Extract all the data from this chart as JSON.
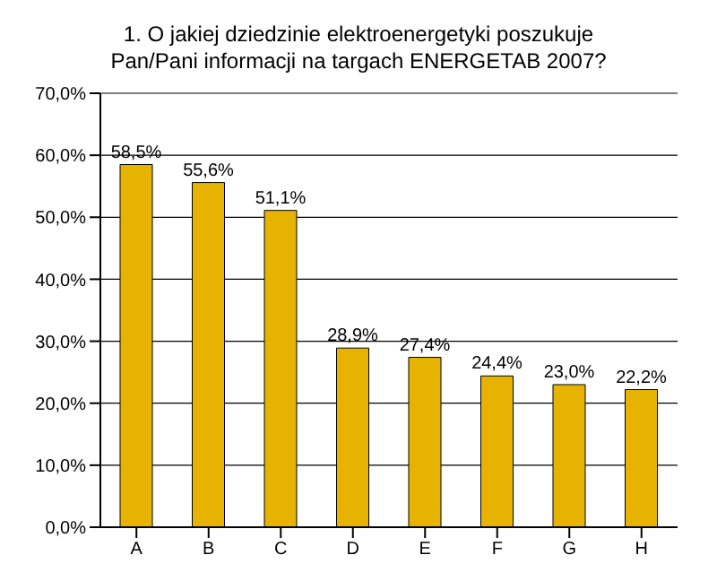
{
  "chart_data": {
    "type": "bar",
    "title": "1. O jakiej dziedzinie elektroenergetyki poszukuje Pan/Pani informacji na targach ENERGETAB 2007?",
    "categories": [
      "A",
      "B",
      "C",
      "D",
      "E",
      "F",
      "G",
      "H"
    ],
    "values": [
      58.5,
      55.6,
      51.1,
      28.9,
      27.4,
      24.4,
      23.0,
      22.2
    ],
    "value_labels": [
      "58,5%",
      "55,6%",
      "51,1%",
      "28,9%",
      "27,4%",
      "24,4%",
      "23,0%",
      "22,2%"
    ],
    "color": "#e6b400",
    "ylim": [
      0,
      70
    ],
    "yticks": [
      {
        "value": 0,
        "label": "0,0%"
      },
      {
        "value": 10,
        "label": "10,0%"
      },
      {
        "value": 20,
        "label": "20,0%"
      },
      {
        "value": 30,
        "label": "30,0%"
      },
      {
        "value": 40,
        "label": "40,0%"
      },
      {
        "value": 50,
        "label": "50,0%"
      },
      {
        "value": 60,
        "label": "60,0%"
      },
      {
        "value": 70,
        "label": "70,0%"
      }
    ],
    "grid": "y"
  }
}
